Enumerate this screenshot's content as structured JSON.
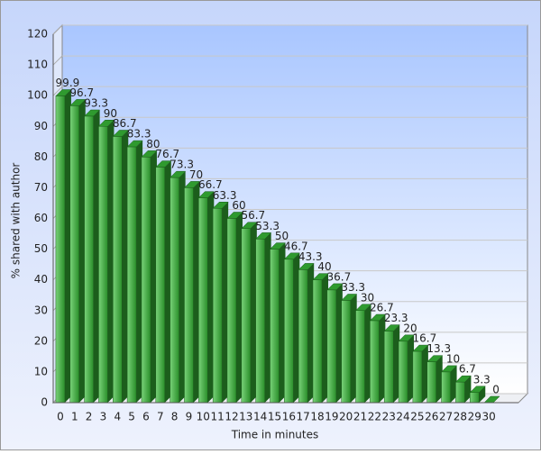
{
  "chart_data": {
    "type": "bar3d",
    "x_label": "Time in minutes",
    "y_label": "% shared with author",
    "categories": [
      "0",
      "1",
      "2",
      "3",
      "4",
      "5",
      "6",
      "7",
      "8",
      "9",
      "10",
      "11",
      "12",
      "13",
      "14",
      "15",
      "16",
      "17",
      "18",
      "19",
      "20",
      "21",
      "22",
      "23",
      "24",
      "25",
      "26",
      "27",
      "28",
      "29",
      "30"
    ],
    "values": [
      99.9,
      96.7,
      93.3,
      90,
      86.7,
      83.3,
      80,
      76.7,
      73.3,
      70,
      66.7,
      63.3,
      60,
      56.7,
      53.3,
      50,
      46.7,
      43.3,
      40,
      36.7,
      33.3,
      30,
      26.7,
      23.3,
      20,
      16.7,
      13.3,
      10,
      6.7,
      3.3,
      0
    ],
    "color": "#3fa63f",
    "ylim": [
      0,
      120
    ],
    "yticks": [
      0,
      10,
      20,
      30,
      40,
      50,
      60,
      70,
      80,
      90,
      100,
      110,
      120
    ],
    "grid": true
  }
}
